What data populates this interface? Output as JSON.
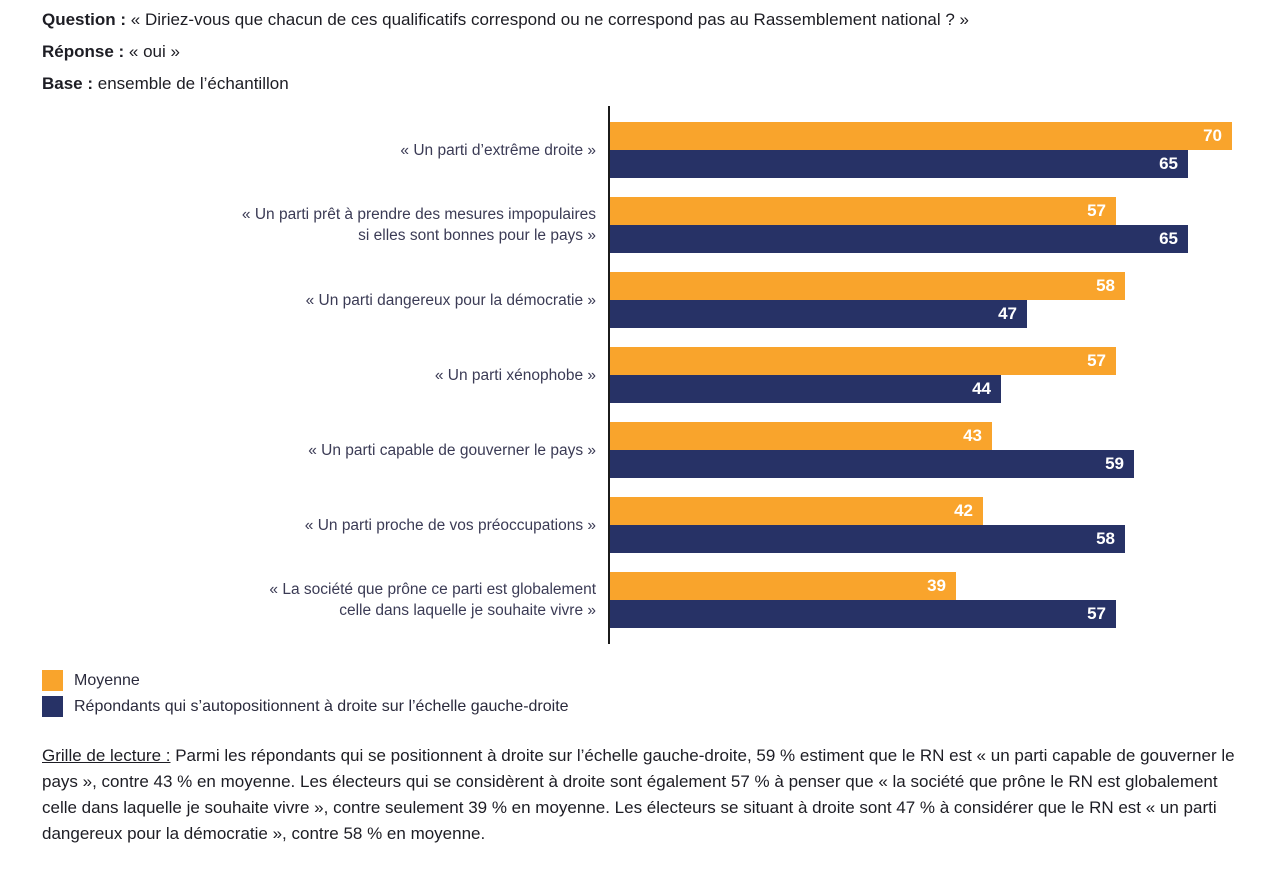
{
  "header": {
    "question_label": "Question :",
    "question_text": "« Diriez-vous que chacun de ces qualificatifs correspond ou ne correspond pas au Rassemblement national ? »",
    "response_label": "Réponse :",
    "response_text": "« oui »",
    "base_label": "Base :",
    "base_text": "ensemble de l’échantillon"
  },
  "chart_data": {
    "type": "bar",
    "orientation": "horizontal",
    "title": "",
    "xlabel": "",
    "ylabel": "",
    "xlim": [
      0,
      70
    ],
    "grid": false,
    "legend_position": "bottom-left",
    "value_unit": "%",
    "categories": [
      "« Un parti d’extrême droite »",
      "« Un parti prêt à prendre des mesures impopulaires\nsi elles sont bonnes pour le pays »",
      "« Un parti dangereux pour la démocratie »",
      "« Un parti xénophobe »",
      "« Un parti capable de gouverner le pays »",
      "« Un parti proche de vos préoccupations »",
      "« La société que prône ce parti est globalement\ncelle dans laquelle je souhaite vivre »"
    ],
    "series": [
      {
        "name": "Moyenne",
        "color": "#F9A42C",
        "values": [
          70,
          57,
          58,
          57,
          43,
          42,
          39
        ]
      },
      {
        "name": "Répondants qui s’autopositionnent à droite sur l’échelle gauche-droite",
        "color": "#273266",
        "values": [
          65,
          65,
          47,
          44,
          59,
          58,
          57
        ]
      }
    ]
  },
  "reading_guide": {
    "label": "Grille de lecture :",
    "text": " Parmi les répondants qui se positionnent à droite sur l’échelle gauche-droite, 59 % estiment que le RN est « un parti capable de gouverner le pays », contre 43 % en moyenne. Les électeurs qui se considèrent à droite sont également 57 % à penser que « la société que prône le RN est globalement celle dans laquelle je souhaite vivre », contre seulement 39 % en moyenne. Les électeurs se situant à droite sont 47 % à considérer que le RN est « un parti dangereux pour la démocratie », contre 58 % en moyenne."
  },
  "colors": {
    "accent_orange": "#F9A42C",
    "accent_navy": "#273266",
    "axis": "#1b1b1b",
    "category_text": "#3b3b55",
    "body_text": "#1d1d24"
  }
}
